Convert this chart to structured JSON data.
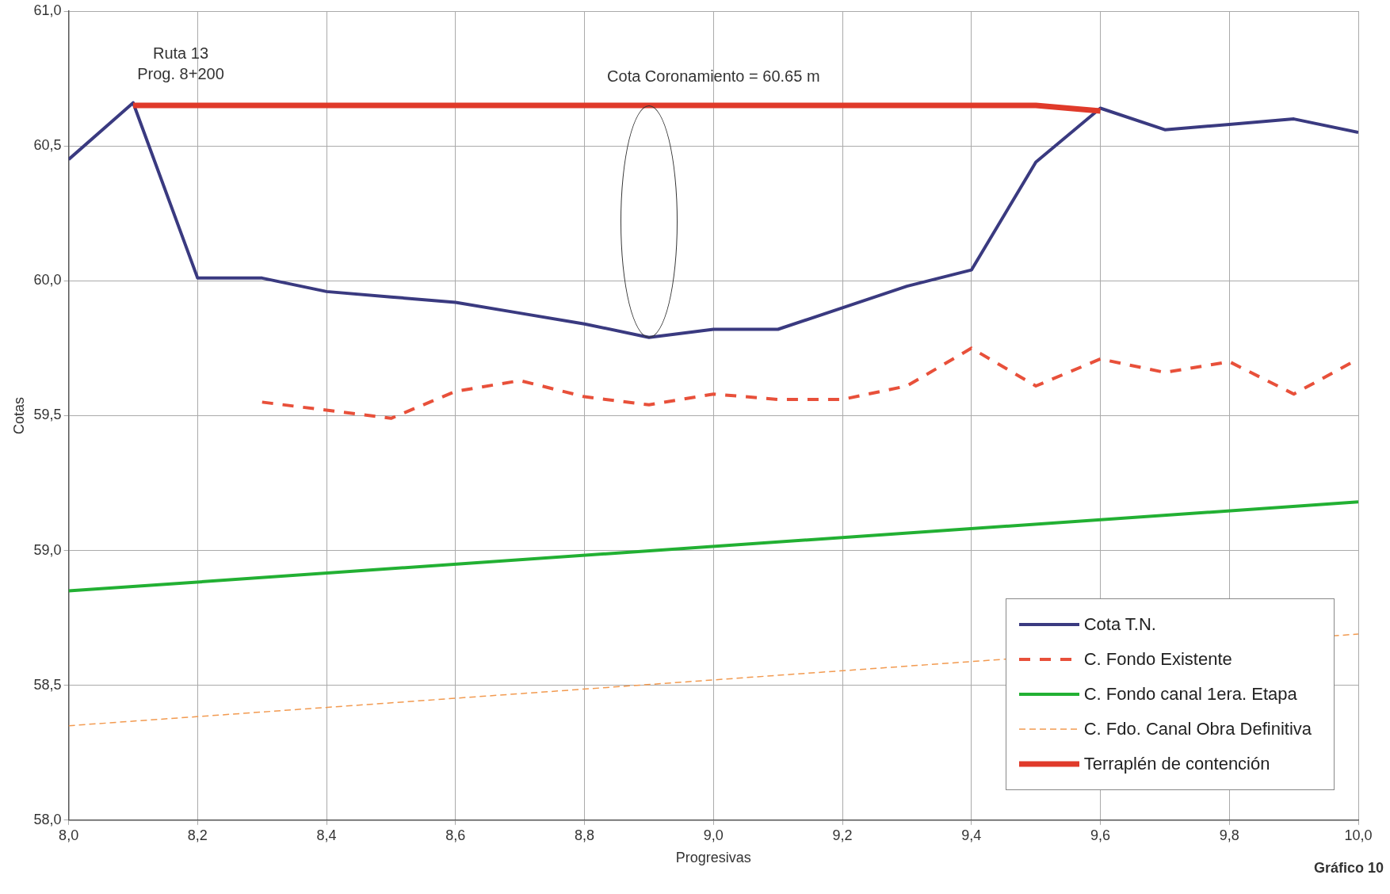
{
  "chart_data": {
    "type": "line",
    "x": [
      8.0,
      8.1,
      8.2,
      8.3,
      8.4,
      8.5,
      8.6,
      8.7,
      8.8,
      8.9,
      9.0,
      9.1,
      9.2,
      9.3,
      9.4,
      9.5,
      9.6,
      9.7,
      9.8,
      9.9,
      10.0
    ],
    "series": [
      {
        "name": "Cota T.N.",
        "color": "#3a3a80",
        "line_style": "solid",
        "values": [
          60.45,
          60.66,
          60.01,
          60.01,
          59.96,
          59.94,
          59.92,
          59.88,
          59.84,
          59.79,
          59.82,
          59.82,
          59.9,
          59.98,
          60.04,
          60.44,
          60.64,
          60.56,
          60.58,
          60.6,
          60.55
        ]
      },
      {
        "name": "C. Fondo Existente",
        "color": "#e8503a",
        "line_style": "dashed",
        "values": [
          null,
          null,
          null,
          59.55,
          59.52,
          59.49,
          59.59,
          59.63,
          59.57,
          59.54,
          59.58,
          59.56,
          59.56,
          59.61,
          59.75,
          59.61,
          59.71,
          59.66,
          59.7,
          59.58,
          59.71
        ]
      },
      {
        "name": "C. Fondo canal 1era. Etapa",
        "color": "#22b033",
        "line_style": "solid",
        "x": [
          8.0,
          10.0
        ],
        "values": [
          58.85,
          59.18
        ]
      },
      {
        "name": "C. Fdo. Canal Obra Definitiva",
        "color": "#f29a50",
        "line_style": "dashed",
        "x": [
          8.0,
          10.0
        ],
        "values": [
          58.35,
          58.69
        ]
      },
      {
        "name": "Terraplén de contención",
        "color": "#e03a2a",
        "line_style": "solid",
        "x": [
          8.1,
          9.5,
          9.6
        ],
        "values": [
          60.65,
          60.65,
          60.63
        ]
      }
    ],
    "xlabel": "Progresivas",
    "ylabel": "Cotas",
    "xlim": [
      8.0,
      10.0
    ],
    "xticks": [
      {
        "value": 8.0,
        "label": "8,0"
      },
      {
        "value": 8.2,
        "label": "8,2"
      },
      {
        "value": 8.4,
        "label": "8,4"
      },
      {
        "value": 8.6,
        "label": "8,6"
      },
      {
        "value": 8.8,
        "label": "8,8"
      },
      {
        "value": 9.0,
        "label": "9,0"
      },
      {
        "value": 9.2,
        "label": "9,2"
      },
      {
        "value": 9.4,
        "label": "9,4"
      },
      {
        "value": 9.6,
        "label": "9,6"
      },
      {
        "value": 9.8,
        "label": "9,8"
      },
      {
        "value": 10.0,
        "label": "10,0"
      }
    ],
    "ylim": [
      58.0,
      61.0
    ],
    "yticks": [
      {
        "value": 58.0,
        "label": "58,0"
      },
      {
        "value": 58.5,
        "label": "58,5"
      },
      {
        "value": 59.0,
        "label": "59,0"
      },
      {
        "value": 59.5,
        "label": "59,5"
      },
      {
        "value": 60.0,
        "label": "60,0"
      },
      {
        "value": 60.5,
        "label": "60,5"
      },
      {
        "value": 61.0,
        "label": "61,0"
      }
    ],
    "annotations": [
      {
        "text": "Ruta 13\nProg. 8+200",
        "x": 8.1,
        "y": 60.66
      },
      {
        "text": "Cota Coronamiento = 60.65 m",
        "x": 9.0,
        "y": 60.65
      },
      "Gráfico 10"
    ],
    "grid": true,
    "legend": "bottom right",
    "marker": "none"
  }
}
